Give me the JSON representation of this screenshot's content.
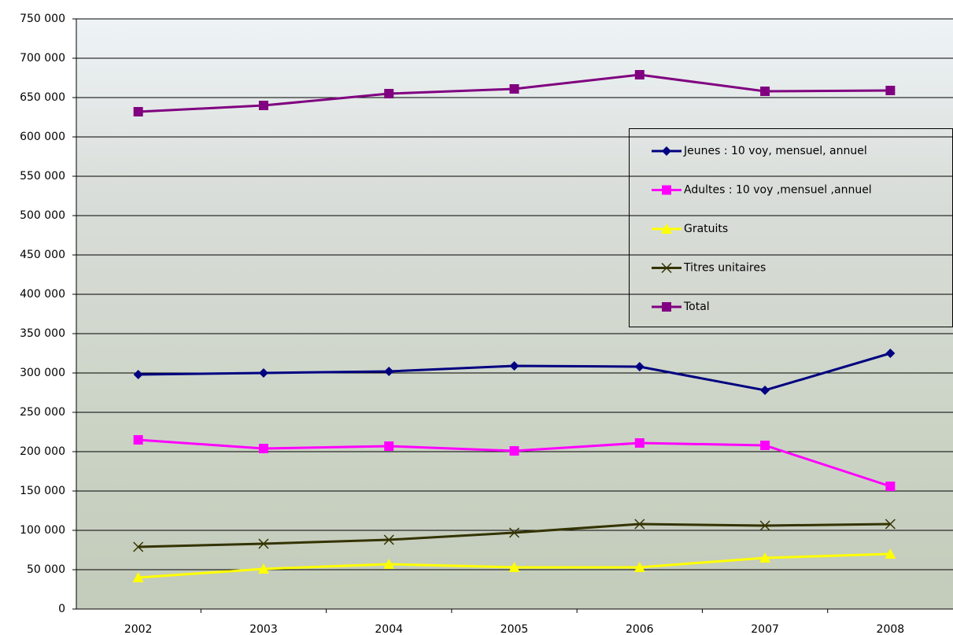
{
  "chart_data": {
    "type": "line",
    "categories": [
      "2002",
      "2003",
      "2004",
      "2005",
      "2006",
      "2007",
      "2008"
    ],
    "series": [
      {
        "name": "Jeunes : 10 voy, mensuel, annuel",
        "color": "#000080",
        "marker": "diamond",
        "values": [
          298000,
          300000,
          302000,
          309000,
          308000,
          278000,
          325000
        ]
      },
      {
        "name": "Adultes : 10 voy ,mensuel ,annuel",
        "color": "#ff00ff",
        "marker": "square",
        "values": [
          215000,
          204000,
          207000,
          201000,
          211000,
          208000,
          156000
        ]
      },
      {
        "name": "Gratuits",
        "color": "#ffff00",
        "marker": "triangle",
        "values": [
          40000,
          51000,
          57000,
          53000,
          53000,
          65000,
          70000
        ]
      },
      {
        "name": "Titres unitaires",
        "color": "#333300",
        "marker": "x",
        "values": [
          79000,
          83000,
          88000,
          97000,
          108000,
          106000,
          108000
        ]
      },
      {
        "name": "Total",
        "color": "#800080",
        "marker": "square",
        "values": [
          632000,
          640000,
          655000,
          661000,
          679000,
          658000,
          659000
        ]
      }
    ],
    "ylim": [
      0,
      750000
    ],
    "yticks": [
      0,
      {
        "value": 50000,
        "label": "50 000"
      },
      {
        "value": 100000,
        "label": "100 000"
      },
      {
        "value": 150000,
        "label": "150 000"
      },
      {
        "value": 200000,
        "label": "200 000"
      },
      {
        "value": 250000,
        "label": "250 000"
      },
      {
        "value": 300000,
        "label": "300 000"
      },
      {
        "value": 350000,
        "label": "350 000"
      },
      {
        "value": 400000,
        "label": "400 000"
      },
      {
        "value": 450000,
        "label": "450 000"
      },
      {
        "value": 500000,
        "label": "500 000"
      },
      {
        "value": 550000,
        "label": "550 000"
      },
      {
        "value": 600000,
        "label": "600 000"
      },
      {
        "value": 650000,
        "label": "650 000"
      },
      {
        "value": 700000,
        "label": "700 000"
      },
      {
        "value": 750000,
        "label": "750 000"
      }
    ],
    "grid": true,
    "legend_position": "right"
  }
}
